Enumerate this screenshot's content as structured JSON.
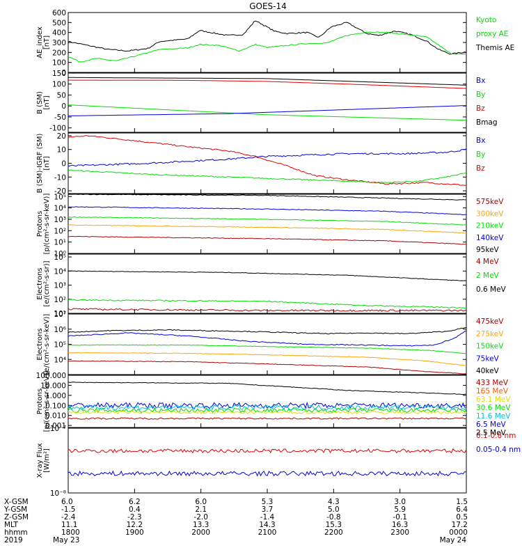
{
  "title": "GOES-14",
  "chart_data": [
    {
      "type": "line",
      "ylabel": [
        "AE_index",
        "[nT]"
      ],
      "yticks": [
        "600",
        "500",
        "400",
        "300",
        "200",
        "100",
        "0"
      ],
      "ylim": [
        0,
        600
      ],
      "legend": [
        {
          "text": "Kyoto",
          "color": "#00e000"
        },
        {
          "text": "proxy AE",
          "color": "#00e000"
        },
        {
          "text": "Themis AE",
          "color": "#000000"
        }
      ],
      "series": [
        {
          "color": "#000000",
          "noise": 6,
          "x": [
            0,
            0.1,
            0.15,
            0.2,
            0.23,
            0.3,
            0.33,
            0.4,
            0.44,
            0.47,
            0.52,
            0.55,
            0.6,
            0.63,
            0.66,
            0.7,
            0.75,
            0.78,
            0.82,
            0.86,
            0.9,
            0.93,
            0.96,
            1
          ],
          "y": [
            310,
            230,
            215,
            240,
            310,
            335,
            420,
            370,
            380,
            520,
            410,
            390,
            400,
            350,
            455,
            500,
            390,
            370,
            415,
            380,
            315,
            230,
            185,
            205
          ]
        },
        {
          "color": "#00e000",
          "noise": 5,
          "x": [
            0,
            0.03,
            0.07,
            0.12,
            0.17,
            0.23,
            0.3,
            0.33,
            0.38,
            0.43,
            0.47,
            0.5,
            0.55,
            0.6,
            0.65,
            0.7,
            0.75,
            0.8,
            0.85,
            0.9,
            0.93,
            0.96,
            1
          ],
          "y": [
            160,
            105,
            140,
            115,
            165,
            230,
            245,
            280,
            270,
            215,
            280,
            250,
            270,
            290,
            295,
            370,
            405,
            400,
            380,
            355,
            275,
            190,
            180
          ]
        }
      ]
    },
    {
      "type": "line",
      "ylabel": [
        "B (SM)",
        "[nT]"
      ],
      "yticks": [
        "150",
        "100",
        "50",
        "0",
        "-50",
        "-100"
      ],
      "ylim": [
        -120,
        150
      ],
      "legend": [
        {
          "text": "Bx",
          "color": "#0000e0"
        },
        {
          "text": "By",
          "color": "#00e000"
        },
        {
          "text": "Bz",
          "color": "#e00000"
        },
        {
          "text": "Bmag",
          "color": "#000000"
        }
      ],
      "series": [
        {
          "color": "#000000",
          "noise": 0,
          "x": [
            0,
            0.5,
            1
          ],
          "y": [
            130,
            125,
            95
          ]
        },
        {
          "color": "#e00000",
          "noise": 0,
          "x": [
            0,
            0.3,
            0.5,
            0.7,
            1
          ],
          "y": [
            118,
            117,
            112,
            100,
            80
          ]
        },
        {
          "color": "#00e000",
          "noise": 0,
          "x": [
            0,
            0.5,
            1
          ],
          "y": [
            5,
            -40,
            -65
          ]
        },
        {
          "color": "#0000e0",
          "noise": 0,
          "x": [
            0,
            0.4,
            1
          ],
          "y": [
            -45,
            -35,
            2
          ]
        }
      ]
    },
    {
      "type": "line",
      "ylabel": [
        "B (SM)-IGRF (SM)",
        "[nT]"
      ],
      "yticks": [
        "20",
        "10",
        "0",
        "-10",
        "-20"
      ],
      "ylim": [
        -22,
        22
      ],
      "legend": [
        {
          "text": "Bx",
          "color": "#0000e0"
        },
        {
          "text": "By",
          "color": "#00e000"
        },
        {
          "text": "Bz",
          "color": "#e00000"
        }
      ],
      "series": [
        {
          "color": "#e00000",
          "noise": 0.5,
          "x": [
            0,
            0.05,
            0.15,
            0.3,
            0.4,
            0.47,
            0.55,
            0.62,
            0.7,
            0.8,
            0.9,
            1
          ],
          "y": [
            19,
            20,
            17,
            12,
            9,
            5,
            -2,
            -9,
            -12,
            -15,
            -14,
            -16
          ]
        },
        {
          "color": "#0000e0",
          "noise": 0.6,
          "x": [
            0,
            0.2,
            0.4,
            0.5,
            0.6,
            0.7,
            0.85,
            0.95,
            1
          ],
          "y": [
            -2,
            0,
            3,
            5,
            6,
            7,
            7,
            8,
            10
          ]
        },
        {
          "color": "#00e000",
          "noise": 0.4,
          "x": [
            0,
            0.2,
            0.4,
            0.6,
            0.7,
            0.8,
            0.88,
            0.95,
            1
          ],
          "y": [
            -5,
            -8,
            -10,
            -12,
            -13,
            -14,
            -13,
            -10,
            -7
          ]
        }
      ]
    },
    {
      "type": "line",
      "log": true,
      "ylabel": [
        "Protons",
        "[p/(cm²-s-sr-keV)]"
      ],
      "ytickdecades": [
        0,
        1,
        2,
        3,
        4,
        5
      ],
      "ylim": [
        0,
        5.2
      ],
      "legend": [
        {
          "text": "575keV",
          "color": "#b00000"
        },
        {
          "text": "300keV",
          "color": "#ffa500"
        },
        {
          "text": "210keV",
          "color": "#00e000"
        },
        {
          "text": "140keV",
          "color": "#0000e0"
        },
        {
          "text": "95keV",
          "color": "#000000"
        }
      ],
      "series": [
        {
          "color": "#000000",
          "noise": 0.03,
          "x": [
            0,
            0.5,
            1
          ],
          "y": [
            5.2,
            5.1,
            4.7
          ]
        },
        {
          "color": "#0000e0",
          "noise": 0.03,
          "x": [
            0,
            0.5,
            0.8,
            1
          ],
          "y": [
            4.1,
            3.9,
            3.7,
            3.4
          ]
        },
        {
          "color": "#00e000",
          "noise": 0.03,
          "x": [
            0,
            0.5,
            0.8,
            1
          ],
          "y": [
            3.2,
            3.0,
            2.8,
            2.5
          ]
        },
        {
          "color": "#ffa500",
          "noise": 0.03,
          "x": [
            0,
            0.5,
            0.8,
            1
          ],
          "y": [
            2.5,
            2.3,
            2.1,
            1.8
          ]
        },
        {
          "color": "#b00000",
          "noise": 0.03,
          "x": [
            0,
            0.5,
            0.8,
            1
          ],
          "y": [
            1.5,
            1.3,
            1.1,
            0.8
          ]
        }
      ]
    },
    {
      "type": "line",
      "log": true,
      "ylabel": [
        "Electrons",
        "[e/(cm²-s-sr)]"
      ],
      "ytickdecades": [
        1,
        2,
        3,
        4,
        5
      ],
      "ylim": [
        1,
        5.2
      ],
      "legend": [
        {
          "text": "4 MeV",
          "color": "#b00000"
        },
        {
          "text": "2 MeV",
          "color": "#00e000"
        },
        {
          "text": "0.6 MeV",
          "color": "#000000"
        }
      ],
      "series": [
        {
          "color": "#000000",
          "noise": 0.02,
          "x": [
            0,
            0.4,
            0.7,
            1
          ],
          "y": [
            4.0,
            3.9,
            3.7,
            3.3
          ]
        },
        {
          "color": "#00e000",
          "noise": 0.04,
          "x": [
            0,
            0.5,
            0.75,
            1
          ],
          "y": [
            1.95,
            1.85,
            1.55,
            1.4
          ]
        },
        {
          "color": "#b00000",
          "noise": 0.06,
          "x": [
            0,
            0.5,
            1
          ],
          "y": [
            1.3,
            1.2,
            1.2
          ]
        }
      ]
    },
    {
      "type": "line",
      "log": true,
      "ylabel": [
        "Electrons",
        "[e/(cm²-s-sr-keV)]"
      ],
      "ytickdecades": [
        4,
        5,
        6,
        7
      ],
      "ylim": [
        3.0,
        7.0
      ],
      "legend": [
        {
          "text": "475keV",
          "color": "#b00000"
        },
        {
          "text": "275keV",
          "color": "#ffa500"
        },
        {
          "text": "150keV",
          "color": "#00e000"
        },
        {
          "text": "75keV",
          "color": "#0000e0"
        },
        {
          "text": "40keV",
          "color": "#000000"
        }
      ],
      "series": [
        {
          "color": "#000000",
          "noise": 0.03,
          "x": [
            0,
            0.1,
            0.25,
            0.45,
            0.65,
            0.75,
            0.85,
            0.95,
            1
          ],
          "y": [
            5.8,
            5.9,
            5.95,
            5.85,
            5.7,
            5.75,
            5.7,
            5.85,
            6.1
          ]
        },
        {
          "color": "#0000e0",
          "noise": 0.03,
          "x": [
            0,
            0.15,
            0.3,
            0.45,
            0.6,
            0.75,
            0.85,
            0.92,
            0.97,
            1
          ],
          "y": [
            5.55,
            5.75,
            5.55,
            5.2,
            5.0,
            4.95,
            4.9,
            4.95,
            5.4,
            5.9
          ]
        },
        {
          "color": "#00e000",
          "noise": 0.02,
          "x": [
            0,
            0.3,
            0.5,
            0.75,
            0.9,
            1
          ],
          "y": [
            4.95,
            4.95,
            4.85,
            4.75,
            4.6,
            4.4
          ]
        },
        {
          "color": "#ffa500",
          "noise": 0.02,
          "x": [
            0,
            0.3,
            0.5,
            0.75,
            0.9,
            1
          ],
          "y": [
            4.45,
            4.4,
            4.3,
            4.15,
            3.9,
            3.6
          ]
        },
        {
          "color": "#b00000",
          "noise": 0.02,
          "x": [
            0,
            0.3,
            0.5,
            0.75,
            0.9,
            1
          ],
          "y": [
            3.9,
            3.85,
            3.7,
            3.5,
            3.2,
            3.05
          ]
        }
      ]
    },
    {
      "type": "line",
      "log": true,
      "ylabel": [
        "Protons",
        "[p/(cm²-s-sr-keV)]"
      ],
      "yticks": [
        "100.000",
        "10.000",
        "1.000",
        "0.100",
        "0.010",
        "0.001"
      ],
      "ylim": [
        -3.2,
        2.0
      ],
      "legend": [
        {
          "text": "433 MeV",
          "color": "#b00000"
        },
        {
          "text": "165 MeV",
          "color": "#ff5500"
        },
        {
          "text": "63.1 MeV",
          "color": "#e0e000"
        },
        {
          "text": "30.6 MeV",
          "color": "#00e000"
        },
        {
          "text": "11.6 MeV",
          "color": "#00c0e0"
        },
        {
          "text": "6.5 MeV",
          "color": "#0000e0"
        },
        {
          "text": "2.5 MeV",
          "color": "#000000"
        }
      ],
      "series": [
        {
          "color": "#000000",
          "noise": 0.03,
          "x": [
            0,
            0.4,
            0.7,
            1
          ],
          "y": [
            1.3,
            1.2,
            0.5,
            0.1
          ]
        },
        {
          "color": "#0000e0",
          "noise": 0.28,
          "x": [
            0,
            1
          ],
          "y": [
            -1.0,
            -1.0
          ]
        },
        {
          "color": "#00c0e0",
          "noise": 0.25,
          "x": [
            0,
            1
          ],
          "y": [
            -1.2,
            -1.2
          ]
        },
        {
          "color": "#00e000",
          "noise": 0.22,
          "x": [
            0,
            1
          ],
          "y": [
            -1.5,
            -1.5
          ]
        },
        {
          "color": "#e0e000",
          "noise": 0.15,
          "x": [
            0,
            1
          ],
          "y": [
            -1.7,
            -1.7
          ]
        },
        {
          "color": "#b00000",
          "noise": 0.08,
          "x": [
            0,
            1
          ],
          "y": [
            -2.3,
            -2.3
          ]
        }
      ]
    },
    {
      "type": "line",
      "log": true,
      "ylabel": [
        "X-ray Flux",
        "[W/m²]"
      ],
      "ytickdecades": [
        -8,
        -7
      ],
      "ylim": [
        -8.0,
        -7.0
      ],
      "legend": [
        {
          "text": "0.1-0.8 nm",
          "color": "#e00000"
        },
        {
          "text": "0.05-0.4 nm",
          "color": "#0000e0"
        }
      ],
      "series": [
        {
          "color": "#e00000",
          "noise": 0.03,
          "x": [
            0,
            1
          ],
          "y": [
            -7.35,
            -7.35
          ]
        },
        {
          "color": "#0000e0",
          "noise": 0.035,
          "x": [
            0,
            1
          ],
          "y": [
            -7.7,
            -7.7
          ]
        }
      ]
    }
  ],
  "ephemeris": {
    "row_labels": [
      "X-GSM",
      "Y-GSM",
      "Z-GSM",
      "MLT",
      "hhmm",
      "2019"
    ],
    "columns": [
      [
        "6.0",
        "-1.5",
        "-2.4",
        "11.1",
        "1800",
        "May 23"
      ],
      [
        "6.2",
        "0.4",
        "-2.3",
        "12.2",
        "1900",
        ""
      ],
      [
        "6.0",
        "2.1",
        "-2.0",
        "13.3",
        "2000",
        ""
      ],
      [
        "5.3",
        "3.7",
        "-1.4",
        "14.3",
        "2100",
        ""
      ],
      [
        "4.3",
        "5.0",
        "-0.8",
        "15.3",
        "2200",
        ""
      ],
      [
        "3.0",
        "5.9",
        "-0.1",
        "16.3",
        "2300",
        ""
      ],
      [
        "1.5",
        "6.4",
        "0.5",
        "17.2",
        "0000",
        "May 24"
      ]
    ]
  }
}
